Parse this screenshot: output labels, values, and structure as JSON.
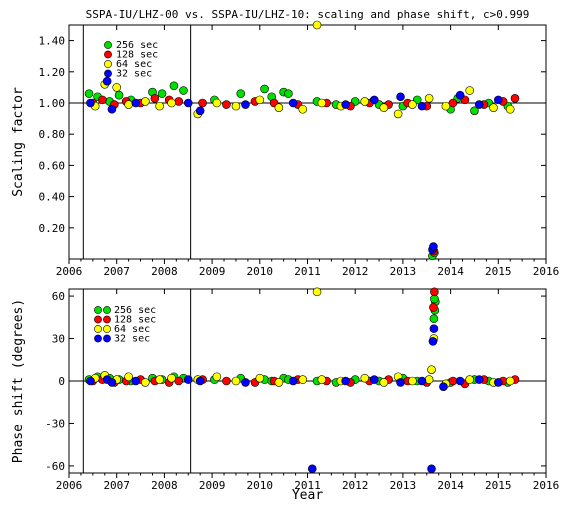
{
  "chart_data": [
    {
      "type": "scatter",
      "title": "SSPA-IU/LHZ-00 vs. SSPA-IU/LHZ-10: scaling and phase shift, c>0.999",
      "xlabel": "",
      "ylabel": "Scaling factor",
      "xlim": [
        2006,
        2016
      ],
      "ylim": [
        0,
        1.5
      ],
      "x_ticks": [
        "2006",
        "2007",
        "2008",
        "2009",
        "2010",
        "2011",
        "2012",
        "2013",
        "2014",
        "2015",
        "2016"
      ],
      "y_ticks": [
        "0.20",
        "0.40",
        "0.60",
        "0.80",
        "1.00",
        "1.20",
        "1.40"
      ],
      "reference_line": 1.0,
      "vertical_lines": [
        2006.3,
        2008.55
      ],
      "grid": false,
      "legend_position": "top-left",
      "series": [
        {
          "name": "256 sec",
          "color": "#00e000",
          "x": [
            2006.42,
            2006.6,
            2006.85,
            2007.05,
            2007.3,
            2007.75,
            2007.95,
            2008.2,
            2008.4,
            2009.05,
            2009.6,
            2010.1,
            2010.25,
            2010.5,
            2010.6,
            2011.2,
            2011.6,
            2012.0,
            2012.5,
            2013.0,
            2013.3,
            2013.62,
            2013.66,
            2014.0,
            2014.15,
            2014.5,
            2014.8,
            2015.2
          ],
          "y": [
            1.06,
            1.04,
            1.01,
            1.05,
            1.02,
            1.07,
            1.06,
            1.11,
            1.08,
            1.02,
            1.06,
            1.09,
            1.04,
            1.07,
            1.06,
            1.01,
            0.99,
            1.01,
            0.99,
            0.98,
            1.02,
            0.02,
            0.04,
            0.96,
            1.03,
            0.95,
            1.0,
            0.98
          ]
        },
        {
          "name": "128 sec",
          "color": "#ff0000",
          "x": [
            2006.5,
            2006.7,
            2006.95,
            2007.2,
            2007.5,
            2007.8,
            2008.1,
            2008.3,
            2008.8,
            2009.3,
            2009.9,
            2010.3,
            2010.8,
            2011.4,
            2011.9,
            2012.3,
            2012.7,
            2013.1,
            2013.5,
            2013.65,
            2014.05,
            2014.3,
            2014.7,
            2015.1,
            2015.35
          ],
          "y": [
            1.0,
            1.02,
            0.99,
            1.01,
            1.0,
            1.03,
            1.02,
            1.01,
            1.0,
            0.99,
            1.01,
            1.0,
            0.99,
            1.0,
            0.98,
            1.0,
            0.99,
            1.0,
            0.98,
            0.05,
            1.0,
            1.02,
            0.99,
            1.01,
            1.03
          ]
        },
        {
          "name": "64 sec",
          "color": "#ffff00",
          "x": [
            2006.55,
            2006.75,
            2007.0,
            2007.25,
            2007.6,
            2007.9,
            2008.15,
            2008.7,
            2009.1,
            2009.5,
            2010.0,
            2010.4,
            2010.9,
            2011.2,
            2011.3,
            2011.7,
            2012.2,
            2012.6,
            2012.9,
            2013.2,
            2013.55,
            2013.9,
            2014.4,
            2014.9,
            2015.25
          ],
          "y": [
            0.98,
            1.12,
            1.1,
            0.99,
            1.01,
            0.98,
            1.0,
            0.93,
            1.0,
            0.98,
            1.02,
            0.97,
            0.96,
            1.5,
            1.0,
            0.98,
            1.01,
            0.97,
            0.93,
            0.99,
            1.03,
            0.98,
            1.08,
            0.97,
            0.96
          ]
        },
        {
          "name": "32 sec",
          "color": "#0000ff",
          "x": [
            2006.45,
            2006.8,
            2006.9,
            2007.4,
            2008.5,
            2008.75,
            2009.7,
            2010.7,
            2011.8,
            2012.4,
            2012.95,
            2013.4,
            2013.62,
            2013.64,
            2014.2,
            2014.6,
            2015.0
          ],
          "y": [
            1.0,
            1.14,
            0.96,
            1.0,
            1.0,
            0.95,
            0.99,
            1.0,
            0.99,
            1.02,
            1.04,
            0.98,
            0.06,
            0.08,
            1.05,
            0.99,
            1.02
          ]
        }
      ]
    },
    {
      "type": "scatter",
      "title": "",
      "xlabel": "Year",
      "ylabel": "Phase shift (degrees)",
      "xlim": [
        2006,
        2016
      ],
      "ylim": [
        -65,
        65
      ],
      "x_ticks": [
        "2006",
        "2007",
        "2008",
        "2009",
        "2010",
        "2011",
        "2012",
        "2013",
        "2014",
        "2015",
        "2016"
      ],
      "y_ticks": [
        "-60",
        "-30",
        "0",
        "30",
        "60"
      ],
      "reference_line": 0,
      "vertical_lines": [
        2006.3,
        2008.55
      ],
      "grid": false,
      "legend_position": "top-left",
      "series": [
        {
          "name": "256 sec",
          "color": "#00e000",
          "x": [
            2006.42,
            2006.6,
            2006.85,
            2007.05,
            2007.3,
            2007.75,
            2007.95,
            2008.2,
            2008.4,
            2009.05,
            2009.6,
            2010.1,
            2010.25,
            2010.5,
            2010.6,
            2011.2,
            2011.6,
            2012.0,
            2012.5,
            2013.0,
            2013.3,
            2013.65,
            2013.67,
            2013.68,
            2013.66,
            2014.0,
            2014.5,
            2014.8,
            2015.2
          ],
          "y": [
            1,
            3,
            2,
            1,
            0,
            2,
            1,
            3,
            2,
            1,
            2,
            1,
            0,
            2,
            1,
            0,
            -1,
            1,
            0,
            2,
            0,
            44,
            50,
            56,
            58,
            -1,
            1,
            0,
            -1
          ]
        },
        {
          "name": "128 sec",
          "color": "#ff0000",
          "x": [
            2006.5,
            2006.7,
            2006.95,
            2007.2,
            2007.5,
            2007.8,
            2008.1,
            2008.3,
            2008.8,
            2009.3,
            2009.9,
            2010.3,
            2010.8,
            2011.4,
            2011.9,
            2012.3,
            2012.7,
            2013.1,
            2013.5,
            2013.66,
            2013.64,
            2014.05,
            2014.3,
            2014.7,
            2015.1,
            2015.35
          ],
          "y": [
            0,
            1,
            -1,
            0,
            1,
            0,
            -1,
            0,
            1,
            0,
            -1,
            0,
            1,
            0,
            -1,
            0,
            1,
            0,
            -1,
            63,
            52,
            0,
            -2,
            1,
            0,
            1
          ]
        },
        {
          "name": "64 sec",
          "color": "#ffff00",
          "x": [
            2006.55,
            2006.75,
            2007.0,
            2007.25,
            2007.6,
            2007.9,
            2008.15,
            2008.7,
            2009.1,
            2009.5,
            2010.0,
            2010.4,
            2010.9,
            2011.2,
            2011.3,
            2011.7,
            2012.2,
            2012.6,
            2012.9,
            2013.2,
            2013.55,
            2013.6,
            2013.65,
            2013.9,
            2014.4,
            2014.9,
            2015.25
          ],
          "y": [
            2,
            4,
            1,
            3,
            -1,
            1,
            2,
            1,
            3,
            0,
            2,
            -1,
            1,
            63,
            1,
            0,
            2,
            -1,
            3,
            0,
            1,
            8,
            30,
            -2,
            1,
            -1,
            0
          ]
        },
        {
          "name": "32 sec",
          "color": "#0000ff",
          "x": [
            2006.45,
            2006.8,
            2006.9,
            2007.4,
            2008.5,
            2008.75,
            2009.7,
            2010.7,
            2011.1,
            2011.8,
            2012.4,
            2012.95,
            2013.4,
            2013.6,
            2013.63,
            2013.65,
            2013.85,
            2014.2,
            2014.6,
            2015.0
          ],
          "y": [
            0,
            1,
            -1,
            0,
            1,
            0,
            -1,
            0,
            -62,
            0,
            1,
            -1,
            0,
            -62,
            28,
            37,
            -4,
            0,
            1,
            -1
          ]
        }
      ]
    }
  ]
}
